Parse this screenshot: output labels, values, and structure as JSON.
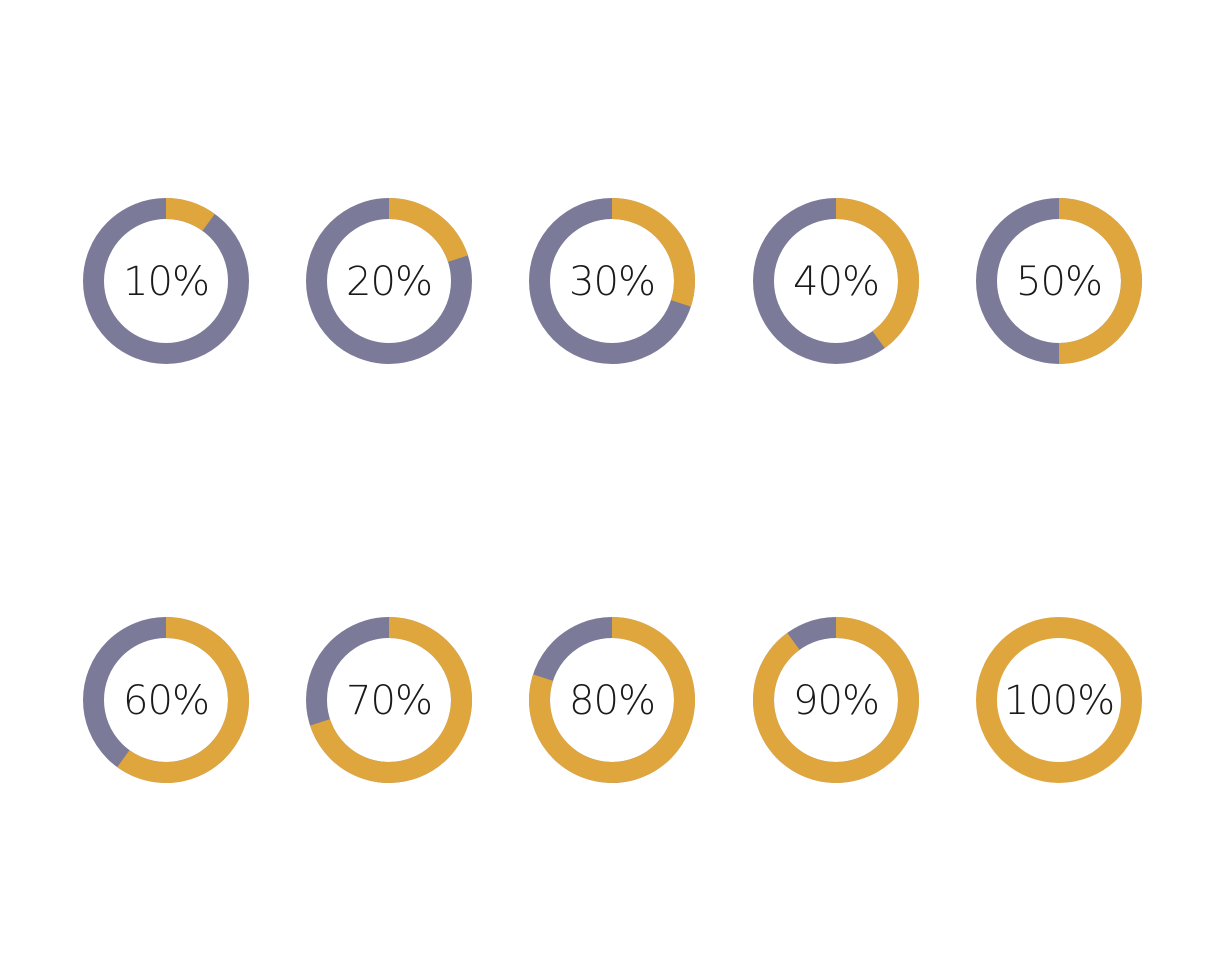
{
  "chart_data": {
    "type": "donut",
    "colors": {
      "filled": "#E0A63E",
      "remaining": "#7B7B99",
      "background": "#FFFFFF",
      "text": "#1A1A1A"
    },
    "items": [
      {
        "label": "10%",
        "value": 10
      },
      {
        "label": "20%",
        "value": 20
      },
      {
        "label": "30%",
        "value": 30
      },
      {
        "label": "40%",
        "value": 40
      },
      {
        "label": "50%",
        "value": 50
      },
      {
        "label": "60%",
        "value": 60
      },
      {
        "label": "70%",
        "value": 70
      },
      {
        "label": "80%",
        "value": 80
      },
      {
        "label": "90%",
        "value": 90
      },
      {
        "label": "100%",
        "value": 100
      }
    ]
  }
}
